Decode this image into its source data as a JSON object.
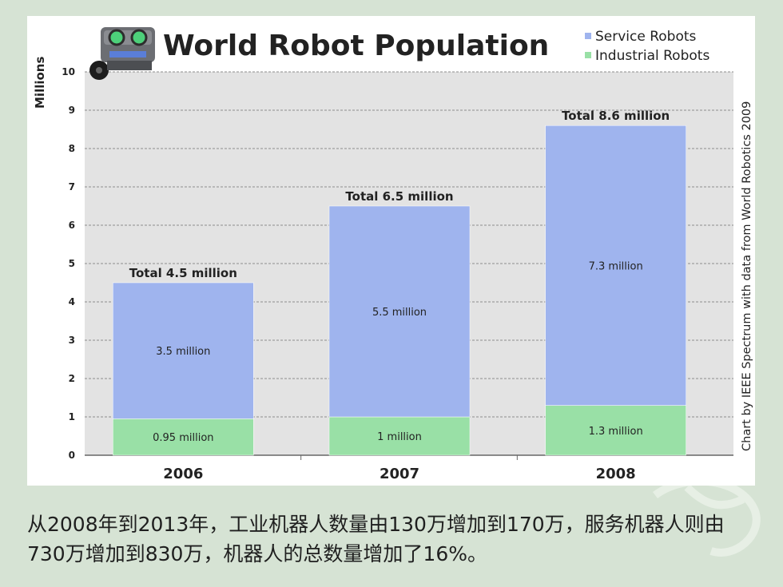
{
  "chart_data": {
    "type": "bar",
    "stacked": true,
    "title": "World Robot Population",
    "ylabel": "Millions",
    "side_note": "Chart by IEEE Spectrum with data from World Robotics 2009",
    "categories": [
      "2006",
      "2007",
      "2008"
    ],
    "category_labels": [
      "2006",
      "2007",
      "2008"
    ],
    "ylim": [
      0,
      10
    ],
    "yticks": [
      0,
      1,
      2,
      3,
      4,
      5,
      6,
      7,
      8,
      9,
      10
    ],
    "grid": true,
    "legend_position": "top-right",
    "series": [
      {
        "name": "Industrial Robots",
        "values": [
          0.95,
          1.0,
          1.3
        ],
        "labels": [
          "0.95 million",
          "1 million",
          "1.3 million"
        ],
        "color": "#99e0a6"
      },
      {
        "name": "Service Robots",
        "values": [
          3.55,
          5.5,
          7.3
        ],
        "labels": [
          "3.5 million",
          "5.5 million",
          "7.3 million"
        ],
        "color": "#9fb4ee"
      }
    ],
    "totals": [
      4.5,
      6.5,
      8.6
    ],
    "total_labels": [
      "Total 4.5 million",
      "Total 6.5 million",
      "Total 8.6 million"
    ],
    "legend_order": [
      "Service Robots",
      "Industrial Robots"
    ]
  },
  "caption": "从2008年到2013年，工业机器人数量由130万增加到170万，服务机器人则由730万增加到830万，机器人的总数量增加了16%。",
  "colors": {
    "slide_background": "#d6e3d4",
    "plot_area": "#e3e3e3",
    "service": "#9fb4ee",
    "industrial": "#99e0a6",
    "robot_body": "#6c6e73"
  },
  "icons": {
    "logo": "robot-mascot-icon"
  }
}
